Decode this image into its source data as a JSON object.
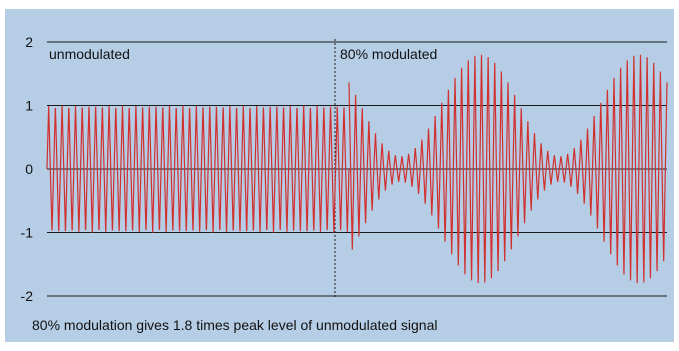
{
  "chart_data": {
    "type": "line",
    "title": "",
    "xlabel": "",
    "ylabel": "",
    "ylim": [
      -2,
      2
    ],
    "yticks": [
      2,
      1,
      0,
      -1,
      -2
    ],
    "ytick_labels": [
      "2",
      "1",
      "0",
      "-1",
      "-2"
    ],
    "grid": true,
    "annotations": [
      "unmodulated",
      "80% modulated"
    ],
    "caption": "80% modulation gives 1.8 times peak level of unmodulated signal",
    "series": [
      {
        "segment": "unmodulated",
        "waveform": "carrier",
        "peak_amplitude": 1.0,
        "carrier_cycles": 45
      },
      {
        "segment": "80% modulated",
        "waveform": "amplitude-modulated carrier",
        "modulation_depth": 0.8,
        "min_envelope": 0.2,
        "max_envelope": 1.8,
        "modulation_cycles": 2,
        "carrier_cycles": 48
      }
    ],
    "colors": {
      "background": "#b6cde6",
      "signal": "#d0302e",
      "gridline": "#1a1a1a",
      "divider": "#1a1a1a"
    }
  }
}
